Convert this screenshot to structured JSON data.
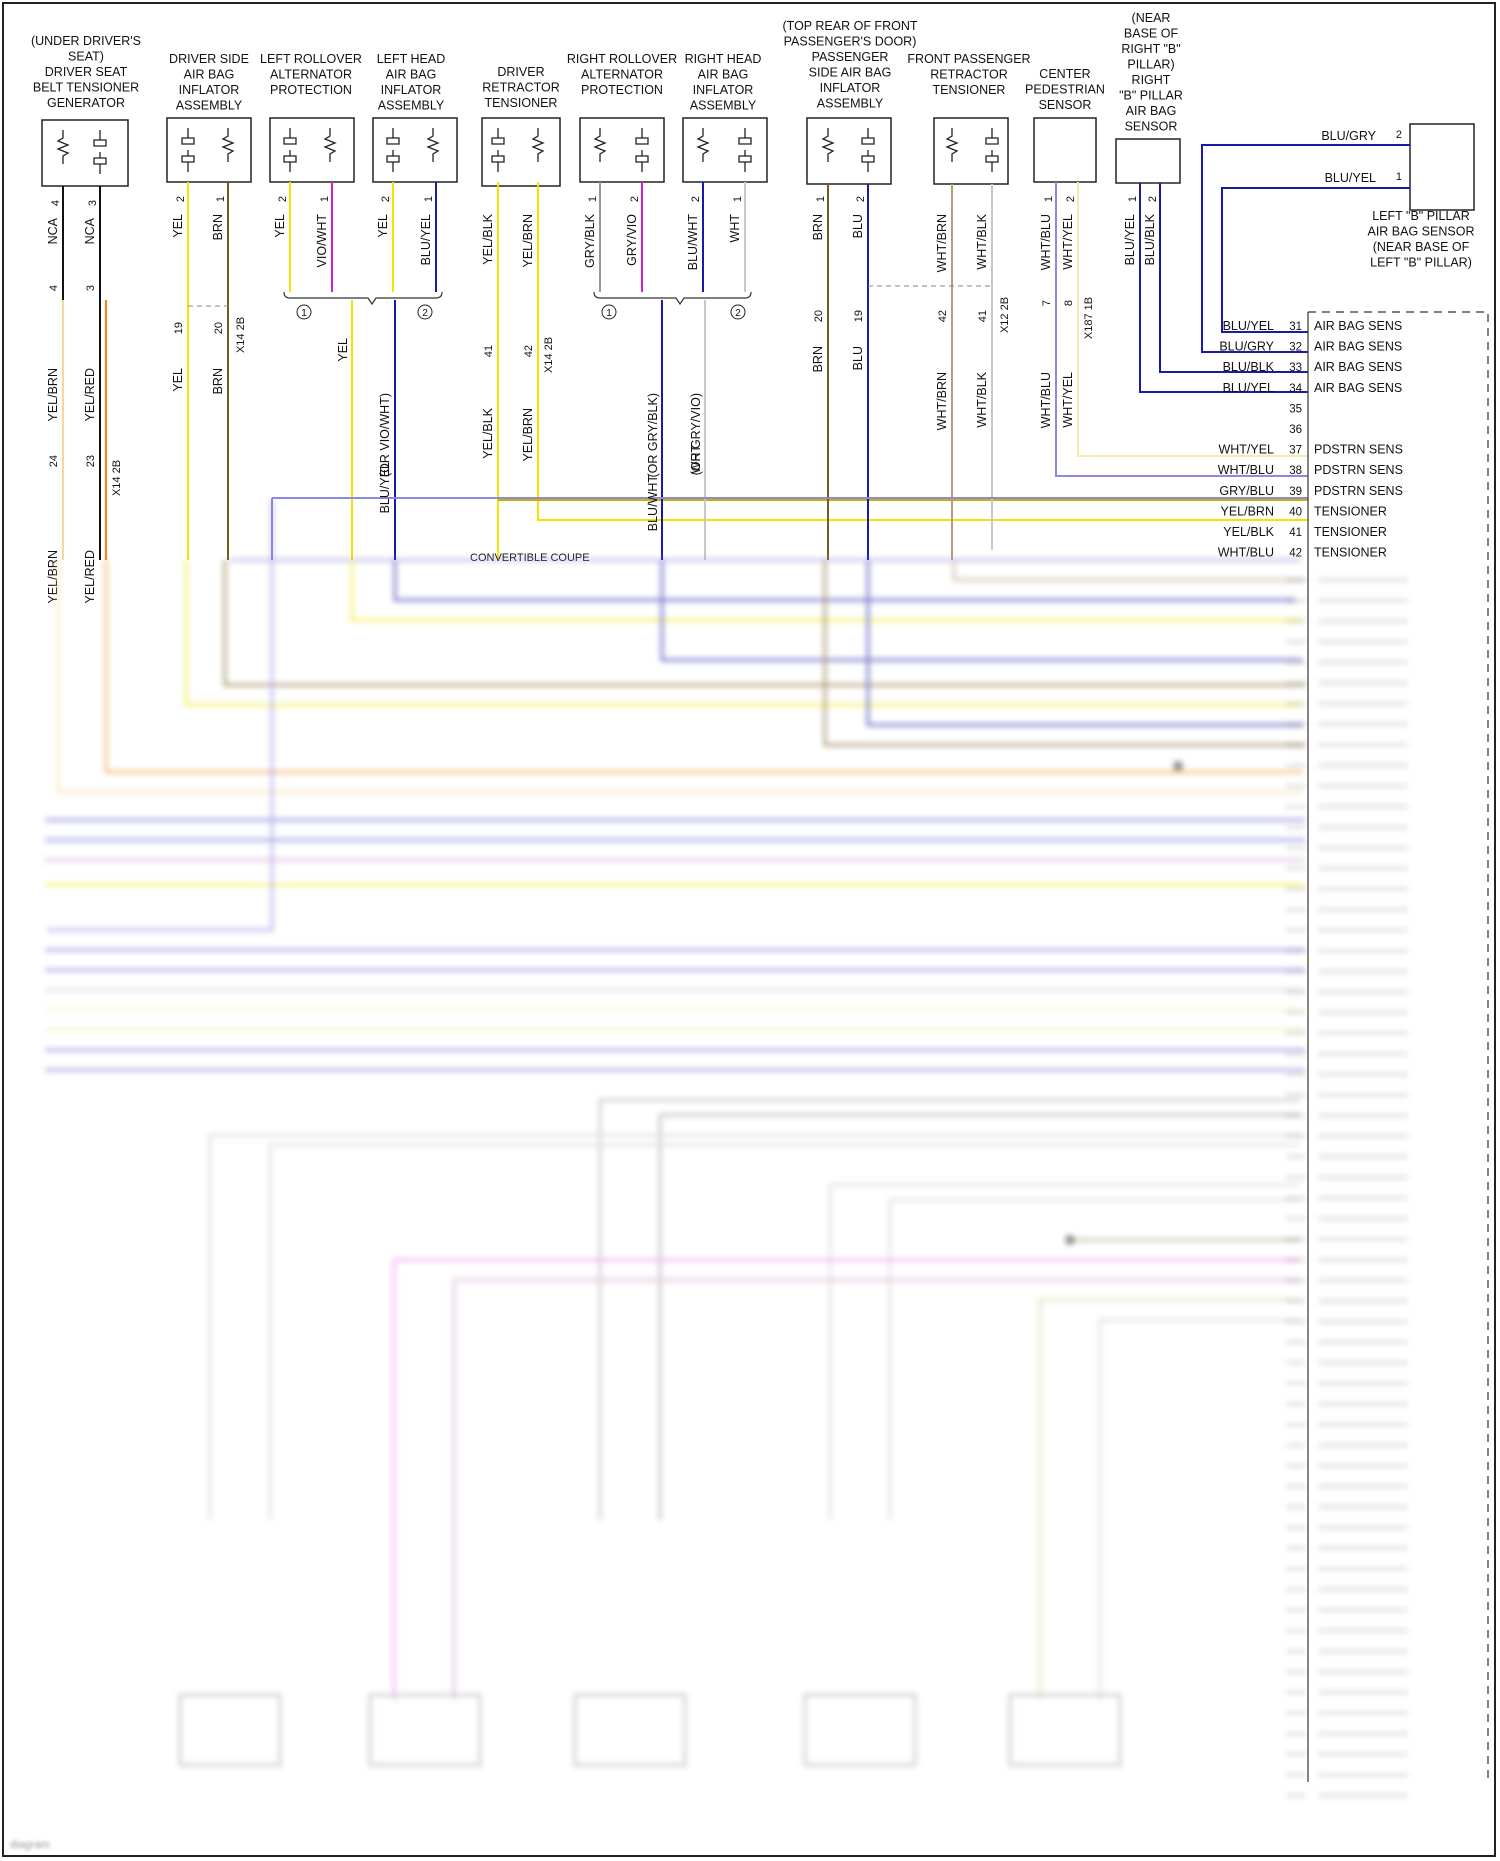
{
  "components": [
    {
      "id": "c1",
      "lines": [
        "(UNDER DRIVER'S",
        "SEAT)",
        "DRIVER SEAT",
        "BELT TENSIONER",
        "GENERATOR"
      ]
    },
    {
      "id": "c2",
      "lines": [
        "DRIVER SIDE",
        "AIR BAG",
        "INFLATOR",
        "ASSEMBLY"
      ]
    },
    {
      "id": "c3",
      "lines": [
        "LEFT ROLLOVER",
        "ALTERNATOR",
        "PROTECTION"
      ]
    },
    {
      "id": "c4",
      "lines": [
        "LEFT HEAD",
        "AIR BAG",
        "INFLATOR",
        "ASSEMBLY"
      ]
    },
    {
      "id": "c5",
      "lines": [
        "DRIVER",
        "RETRACTOR",
        "TENSIONER"
      ]
    },
    {
      "id": "c6",
      "lines": [
        "RIGHT ROLLOVER",
        "ALTERNATOR",
        "PROTECTION"
      ]
    },
    {
      "id": "c7",
      "lines": [
        "RIGHT HEAD",
        "AIR BAG",
        "INFLATOR",
        "ASSEMBLY"
      ]
    },
    {
      "id": "c8",
      "lines": [
        "(TOP REAR OF FRONT",
        "PASSENGER'S DOOR)",
        "PASSENGER",
        "SIDE AIR BAG",
        "INFLATOR",
        "ASSEMBLY"
      ]
    },
    {
      "id": "c9",
      "lines": [
        "FRONT PASSENGER",
        "RETRACTOR",
        "TENSIONER"
      ]
    },
    {
      "id": "c10",
      "lines": [
        "CENTER",
        "PEDESTRIAN",
        "SENSOR"
      ]
    },
    {
      "id": "c11",
      "lines": [
        "(NEAR",
        "BASE OF",
        "RIGHT \"B\"",
        "PILLAR)",
        "RIGHT",
        "\"B\" PILLAR",
        "AIR BAG",
        "SENSOR"
      ]
    },
    {
      "id": "c12",
      "lines": [
        "LEFT \"B\" PILLAR",
        "AIR BAG SENSOR",
        "(NEAR BASE OF",
        "LEFT \"B\" PILLAR)"
      ]
    }
  ],
  "pins": {
    "c1": [
      "4",
      "3"
    ],
    "c2": [
      "2",
      "1"
    ],
    "c3": [
      "2",
      "1"
    ],
    "c4": [
      "2",
      "1"
    ],
    "c5": [
      "",
      ""
    ],
    "c6": [
      "1",
      "2"
    ],
    "c7": [
      "2",
      "1"
    ],
    "c8": [
      "1",
      "2"
    ],
    "c9": [
      "",
      ""
    ],
    "c10": [
      "1",
      "2"
    ],
    "c11": [
      "1",
      "2"
    ],
    "c12": [
      "2",
      "1"
    ]
  },
  "wire_colors": {
    "c1": [
      "NCA",
      "NCA"
    ],
    "c2": [
      "YEL",
      "BRN"
    ],
    "c3": [
      "YEL",
      "VIO/WHT"
    ],
    "c4": [
      "YEL",
      "BLU/YEL"
    ],
    "c5": [
      "YEL/BLK",
      "YEL/BRN"
    ],
    "c6": [
      "GRY/BLK",
      "GRY/VIO"
    ],
    "c7": [
      "BLU/WHT",
      "WHT"
    ],
    "c8": [
      "BRN",
      "BLU"
    ],
    "c9": [
      "WHT/BRN",
      "WHT/BLK"
    ],
    "c10": [
      "WHT/BLU",
      "WHT/YEL"
    ],
    "c11": [
      "BLU/YEL",
      "BLU/BLK"
    ],
    "c12": [
      "BLU/GRY",
      "BLU/YEL"
    ]
  },
  "mid_labels": {
    "c1": [
      "YEL/BRN",
      "YEL/RED"
    ],
    "c2": [
      "YEL",
      "BRN"
    ],
    "c5": [
      "YEL/BLK",
      "YEL/BRN"
    ],
    "c8": [
      "BRN",
      "BLU"
    ],
    "c9": [
      "WHT/BRN",
      "WHT/BLK"
    ],
    "c10": [
      "WHT/BLU",
      "WHT/YEL"
    ],
    "merge3": [
      "YEL",
      "BLU/YEL",
      "(OR VIO/WHT)"
    ],
    "merge6": [
      "BLU/WHT",
      "(OR GRY/BLK)",
      "WHT",
      "(OR GRY/VIO)"
    ]
  },
  "connector_pins": {
    "c1": [
      "24",
      "23"
    ],
    "c1b": [
      "4",
      "3"
    ],
    "c2": [
      "19",
      "20"
    ],
    "c5": [
      "41",
      "42"
    ],
    "c8": [
      "20",
      "19"
    ],
    "c9": [
      "42",
      "41"
    ],
    "c10": [
      "7",
      "8"
    ]
  },
  "connector_ids": {
    "x14_2b": "X14 2B",
    "x12_2b": "X12 2B",
    "x187_1b": "X187 1B"
  },
  "circle_markers": {
    "one": "1",
    "two": "2"
  },
  "note": "CONVERTIBLE COUPE",
  "module_rows": [
    {
      "pin": "31",
      "wire": "BLU/YEL",
      "label": "AIR BAG SENS"
    },
    {
      "pin": "32",
      "wire": "BLU/GRY",
      "label": "AIR BAG SENS"
    },
    {
      "pin": "33",
      "wire": "BLU/BLK",
      "label": "AIR BAG SENS"
    },
    {
      "pin": "34",
      "wire": "BLU/YEL",
      "label": "AIR BAG SENS"
    },
    {
      "pin": "35",
      "wire": "",
      "label": ""
    },
    {
      "pin": "36",
      "wire": "",
      "label": ""
    },
    {
      "pin": "37",
      "wire": "WHT/YEL",
      "label": "PDSTRN SENS"
    },
    {
      "pin": "38",
      "wire": "WHT/BLU",
      "label": "PDSTRN SENS"
    },
    {
      "pin": "39",
      "wire": "GRY/BLU",
      "label": "PDSTRN SENS"
    },
    {
      "pin": "40",
      "wire": "YEL/BRN",
      "label": "TENSIONER"
    },
    {
      "pin": "41",
      "wire": "YEL/BLK",
      "label": "TENSIONER"
    },
    {
      "pin": "42",
      "wire": "WHT/BLU",
      "label": "TENSIONER"
    }
  ],
  "colors": {
    "yel": "#f2e400",
    "brn": "#7a5a1a",
    "blu": "#1a1aa8",
    "vio": "#d020d0",
    "wht": "#c8c8c8",
    "orange": "#f08a1e",
    "gray": "#999999",
    "tan": "#b39c7a",
    "black": "#111111",
    "paleyel": "#f3ecaa",
    "ltblu": "#8a8ae0"
  }
}
